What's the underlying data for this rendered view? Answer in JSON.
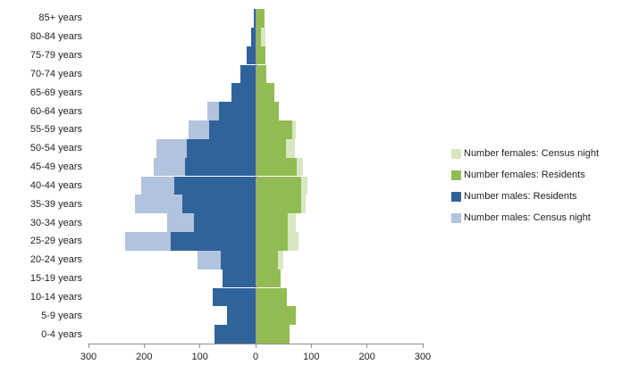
{
  "chart_data": {
    "type": "bar",
    "subtype": "population-pyramid",
    "title": "",
    "xlabel": "",
    "ylabel": "",
    "grid": false,
    "legend_position": "right",
    "categories": [
      "85+ years",
      "80-84 years",
      "75-79 years",
      "70-74 years",
      "65-69 years",
      "60-64 years",
      "55-59 years",
      "50-54 years",
      "45-49 years",
      "40-44 years",
      "35-39 years",
      "30-34 years",
      "25-29 years",
      "20-24 years",
      "15-19 years",
      "10-14 years",
      "5-9 years",
      "0-4 years"
    ],
    "series": [
      {
        "name": "Number females: Census night",
        "side": "right",
        "layer": "back",
        "color": "#D8E7C3",
        "values": [
          14,
          16,
          16,
          18,
          32,
          40,
          71,
          69,
          83,
          91,
          88,
          71,
          75,
          48,
          36,
          54,
          70,
          59
        ]
      },
      {
        "name": "Number females: Residents",
        "side": "right",
        "layer": "front",
        "color": "#92BC53",
        "values": [
          14,
          8,
          16,
          18,
          32,
          40,
          64,
          53,
          72,
          80,
          80,
          56,
          56,
          39,
          44,
          54,
          70,
          59
        ]
      },
      {
        "name": "Number males: Residents",
        "side": "left",
        "layer": "front",
        "color": "#31639B",
        "values": [
          4,
          8,
          16,
          27,
          43,
          65,
          84,
          123,
          127,
          146,
          131,
          111,
          152,
          63,
          59,
          77,
          51,
          73
        ]
      },
      {
        "name": "Number males: Census night",
        "side": "left",
        "layer": "back",
        "color": "#B2C3DD",
        "values": [
          4,
          8,
          16,
          27,
          43,
          86,
          120,
          178,
          183,
          205,
          216,
          159,
          235,
          105,
          59,
          77,
          51,
          73
        ]
      }
    ],
    "x_axis": {
      "tick_labels": [
        "300",
        "200",
        "100",
        "0",
        "100",
        "200",
        "300"
      ],
      "max_each_side": 300,
      "units_total_span": 600
    },
    "colors": {
      "axis_line": "#8f8f8f",
      "zero_line": "#9c9c9c",
      "text": "#222222",
      "background": "#ffffff"
    }
  }
}
